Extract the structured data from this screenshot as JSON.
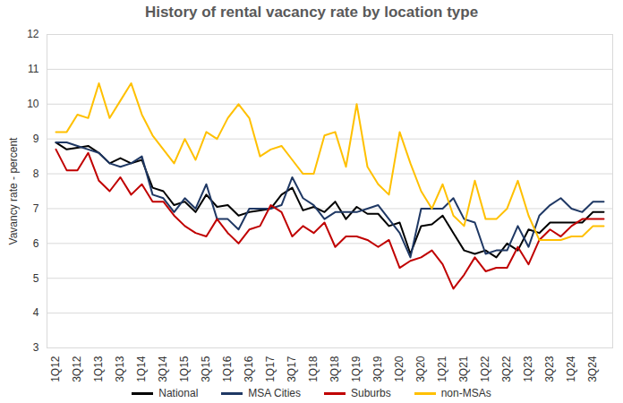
{
  "chart_data": {
    "type": "line",
    "title": "History of rental vacancy rate by location type",
    "y_label": "Vavancy rate - percent",
    "categories": [
      "1Q12",
      null,
      "3Q12",
      null,
      "1Q13",
      null,
      "3Q13",
      null,
      "1Q14",
      null,
      "3Q14",
      null,
      "1Q15",
      null,
      "3Q15",
      null,
      "1Q16",
      null,
      "3Q16",
      null,
      "1Q17",
      null,
      "3Q17",
      null,
      "1Q18",
      null,
      "3Q18",
      null,
      "1Q19",
      null,
      "3Q19",
      null,
      "1Q20",
      null,
      "3Q20",
      null,
      "1Q21",
      null,
      "3Q21",
      null,
      "1Q22",
      null,
      "3Q22",
      null,
      "1Q23",
      null,
      "3Q23",
      null,
      "1Q24",
      null,
      "3Q24",
      null
    ],
    "series": [
      {
        "name": "National",
        "color": "#000000",
        "values": [
          8.9,
          8.7,
          8.75,
          8.8,
          8.6,
          8.3,
          8.45,
          8.3,
          8.4,
          7.6,
          7.5,
          7.1,
          7.2,
          6.9,
          7.4,
          7.05,
          7.1,
          6.8,
          6.9,
          6.95,
          7.0,
          7.4,
          7.6,
          6.95,
          7.05,
          6.9,
          7.2,
          6.7,
          7.05,
          6.85,
          6.85,
          6.5,
          6.6,
          5.7,
          6.5,
          6.55,
          6.8,
          6.3,
          5.8,
          5.7,
          5.8,
          5.6,
          6.0,
          5.8,
          6.4,
          6.3,
          6.6,
          6.6,
          6.6,
          6.6,
          6.9,
          6.9
        ]
      },
      {
        "name": "MSA Cities",
        "color": "#1f3864",
        "values": [
          8.9,
          8.9,
          8.8,
          8.7,
          8.6,
          8.3,
          8.2,
          8.3,
          8.5,
          7.4,
          7.3,
          6.9,
          7.3,
          7.0,
          7.7,
          6.7,
          6.7,
          6.4,
          7.0,
          7.0,
          7.0,
          7.1,
          7.9,
          7.3,
          7.1,
          6.7,
          6.9,
          6.9,
          6.9,
          7.0,
          7.1,
          6.7,
          6.3,
          5.6,
          7.0,
          7.0,
          7.0,
          7.3,
          6.7,
          6.6,
          5.7,
          5.8,
          5.8,
          6.5,
          5.9,
          6.8,
          7.1,
          7.3,
          7.0,
          6.9,
          7.2,
          7.2
        ]
      },
      {
        "name": "Suburbs",
        "color": "#c00000",
        "values": [
          8.7,
          8.1,
          8.1,
          8.6,
          7.8,
          7.5,
          7.9,
          7.4,
          7.7,
          7.2,
          7.2,
          6.8,
          6.5,
          6.3,
          6.2,
          6.7,
          6.3,
          6.0,
          6.4,
          6.5,
          7.1,
          6.9,
          6.2,
          6.5,
          6.3,
          6.6,
          5.9,
          6.2,
          6.2,
          6.1,
          5.9,
          6.1,
          5.3,
          5.5,
          5.6,
          5.8,
          5.4,
          4.7,
          5.1,
          5.6,
          5.2,
          5.3,
          5.3,
          5.9,
          5.4,
          6.1,
          6.4,
          6.2,
          6.5,
          6.7,
          6.7,
          6.7
        ]
      },
      {
        "name": "non-MSAs",
        "color": "#ffc000",
        "values": [
          9.2,
          9.2,
          9.7,
          9.6,
          10.6,
          9.6,
          10.1,
          10.6,
          9.7,
          9.1,
          8.7,
          8.3,
          9.0,
          8.4,
          9.2,
          9.0,
          9.6,
          10.0,
          9.6,
          8.5,
          8.7,
          8.8,
          8.4,
          8.0,
          8.0,
          9.1,
          9.2,
          8.2,
          10.0,
          8.2,
          7.7,
          7.4,
          9.2,
          8.3,
          7.5,
          7.0,
          7.7,
          6.8,
          6.5,
          7.8,
          6.7,
          6.7,
          7.0,
          7.8,
          6.8,
          6.1,
          6.1,
          6.1,
          6.2,
          6.2,
          6.5,
          6.5
        ]
      }
    ],
    "ylim": [
      3,
      12
    ],
    "yticks": [
      3,
      4,
      5,
      6,
      7,
      8,
      9,
      10,
      11,
      12
    ],
    "grid": true,
    "legend": "bottom"
  }
}
